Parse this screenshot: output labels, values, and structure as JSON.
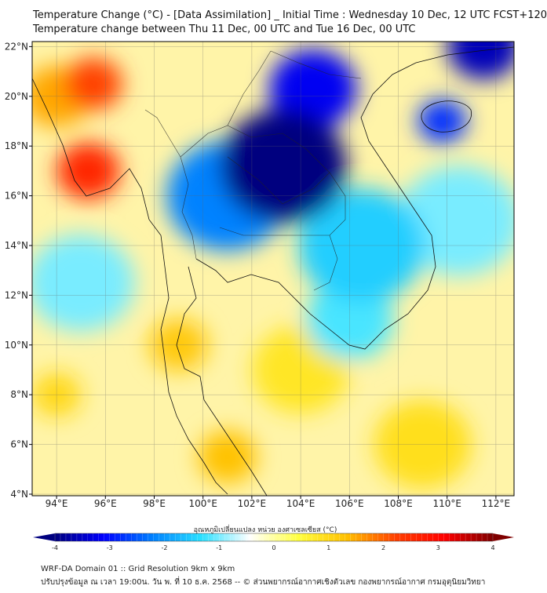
{
  "header": {
    "title": "Temperature Change (°C) - [Data Assimilation] _ Initial Time : Wednesday 10 Dec, 12 UTC FCST+120",
    "subtitle": "Temperature change between Thu 11 Dec, 00 UTC and Tue 16 Dec, 00 UTC"
  },
  "chart_data": {
    "type": "heatmap",
    "lon_range": [
      93,
      112.7
    ],
    "lat_range": [
      4,
      22.2
    ],
    "x_ticks": [
      "94°E",
      "96°E",
      "98°E",
      "100°E",
      "102°E",
      "104°E",
      "106°E",
      "108°E",
      "110°E",
      "112°E"
    ],
    "y_ticks": [
      "4°N",
      "6°N",
      "8°N",
      "10°N",
      "12°N",
      "14°N",
      "16°N",
      "18°N",
      "20°N",
      "22°N"
    ],
    "x_tick_values": [
      94,
      96,
      98,
      100,
      102,
      104,
      106,
      108,
      110,
      112
    ],
    "y_tick_values": [
      4,
      6,
      8,
      10,
      12,
      14,
      16,
      18,
      20,
      22
    ],
    "field_features": [
      {
        "lon": 103.3,
        "lat": 17.2,
        "value": -4.0,
        "r": 2.6
      },
      {
        "lon": 104.5,
        "lat": 20.3,
        "value": -3.2,
        "r": 1.8
      },
      {
        "lon": 111.5,
        "lat": 22,
        "value": -3.6,
        "r": 1.5
      },
      {
        "lon": 109.8,
        "lat": 19,
        "value": -2.8,
        "r": 1.0
      },
      {
        "lon": 101,
        "lat": 16,
        "value": -2.2,
        "r": 2.5
      },
      {
        "lon": 106.5,
        "lat": 14,
        "value": -1.5,
        "r": 2.6
      },
      {
        "lon": 106,
        "lat": 11,
        "value": -1.2,
        "r": 1.8
      },
      {
        "lon": 95,
        "lat": 12.5,
        "value": -1.0,
        "r": 2.2
      },
      {
        "lon": 110.5,
        "lat": 15,
        "value": -1.0,
        "r": 2.5
      },
      {
        "lon": 95.3,
        "lat": 17,
        "value": 2.6,
        "r": 1.3
      },
      {
        "lon": 95.5,
        "lat": 20.5,
        "value": 2.2,
        "r": 1.2
      },
      {
        "lon": 94,
        "lat": 20,
        "value": 1.5,
        "r": 1.4
      },
      {
        "lon": 99,
        "lat": 10,
        "value": 1.2,
        "r": 1.2
      },
      {
        "lon": 101,
        "lat": 5.5,
        "value": 1.3,
        "r": 1.2
      },
      {
        "lon": 104,
        "lat": 9,
        "value": 0.8,
        "r": 2.0
      },
      {
        "lon": 109,
        "lat": 6,
        "value": 0.9,
        "r": 2.0
      },
      {
        "lon": 94,
        "lat": 8,
        "value": 1.0,
        "r": 1.0
      }
    ],
    "colorbar": {
      "label": "อุณหภูมิเปลี่ยนแปลง หน่วย องศาเซลเซียส (°C)",
      "min": -4,
      "max": 4,
      "ticks": [
        "-4",
        "-3",
        "-2",
        "-1",
        "0",
        "1",
        "2",
        "3",
        "4"
      ],
      "tick_values": [
        -4,
        -3,
        -2,
        -1,
        0,
        1,
        2,
        3,
        4
      ],
      "colors": [
        "#00007f",
        "#0000ff",
        "#0080ff",
        "#29e0ff",
        "#ffffff",
        "#ffff40",
        "#ffc000",
        "#ff4000",
        "#ff0000",
        "#7f0000"
      ]
    }
  },
  "footer": {
    "line1": "WRF-DA Domain 01 :: Grid Resolution 9km x 9km",
    "line2": "ปรับปรุงข้อมูล ณ เวลา 19:00น. วัน พ. ที่ 10 ธ.ค. 2568 -- © ส่วนพยากรณ์อากาศเชิงตัวเลข กองพยากรณ์อากาศ กรมอุตุนิยมวิทยา"
  }
}
